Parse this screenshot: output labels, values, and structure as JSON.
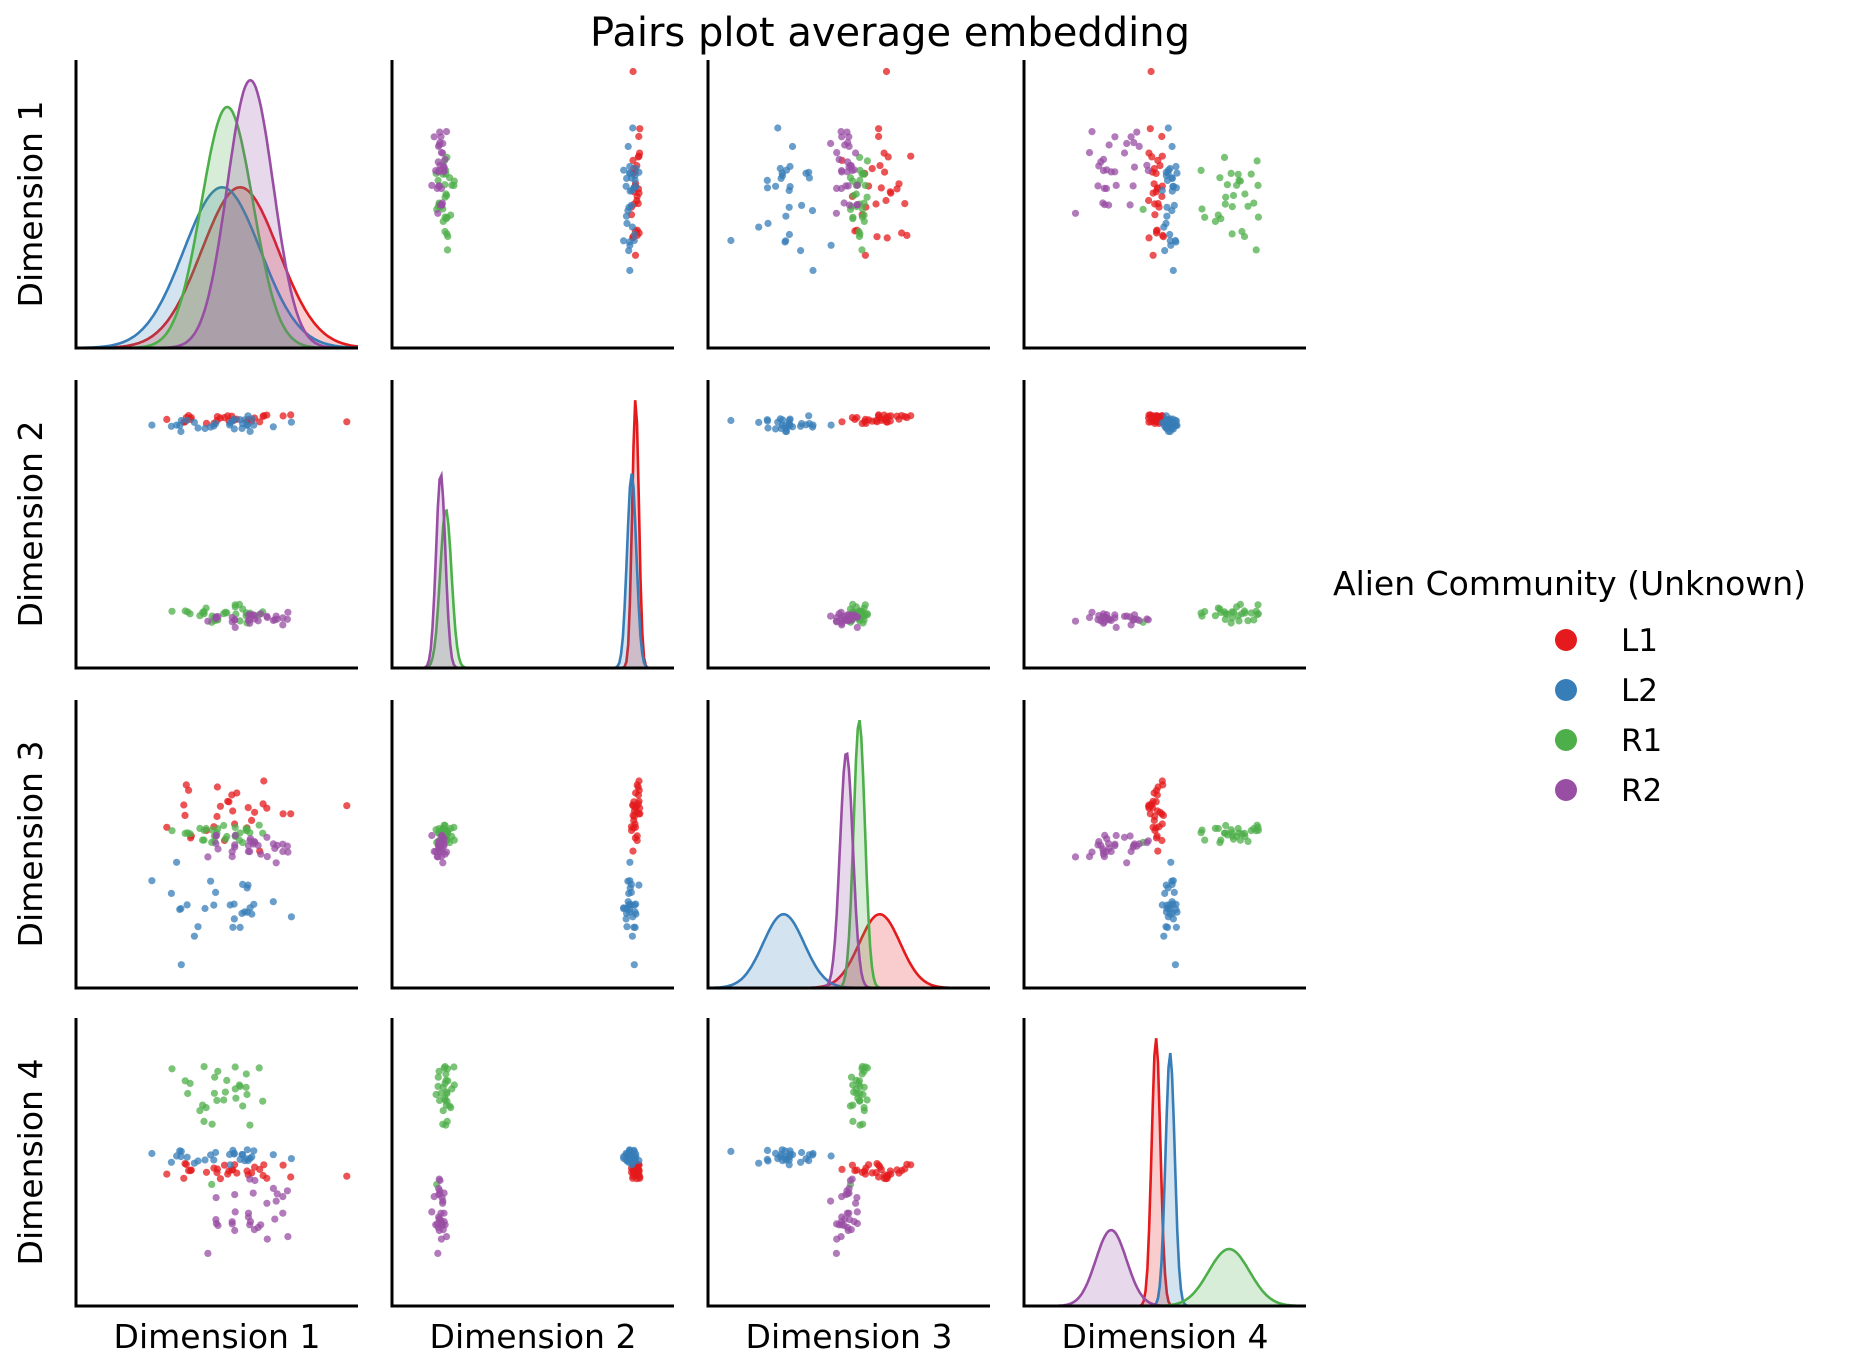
{
  "chart_data": {
    "type": "pairs",
    "title": "Pairs plot average embedding",
    "variables": [
      "Dimension 1",
      "Dimension 2",
      "Dimension 3",
      "Dimension 4"
    ],
    "grid": false,
    "legend": {
      "title": "Alien Community (Unknown)",
      "placement": "right",
      "entries": [
        {
          "label": "L1",
          "color": "#e41a1c"
        },
        {
          "label": "L2",
          "color": "#377eb8"
        },
        {
          "label": "R1",
          "color": "#4daf4a"
        },
        {
          "label": "R2",
          "color": "#984ea3"
        }
      ]
    },
    "ranges": [
      [
        -0.5,
        10.5
      ],
      [
        -0.5,
        10.5
      ],
      [
        -0.5,
        10.5
      ],
      [
        -0.5,
        10.5
      ]
    ],
    "groups": [
      {
        "name": "L1",
        "dim1_mean": 5.9,
        "dim1_sd": 1.5,
        "dim2_mean": 9.0,
        "dim2_sd": 0.13,
        "dim3_mean": 6.2,
        "dim3_sd": 0.8,
        "dim4_mean": 4.65,
        "dim4_sd": 0.17
      },
      {
        "name": "L2",
        "dim1_mean": 5.2,
        "dim1_sd": 1.5,
        "dim2_mean": 8.85,
        "dim2_sd": 0.18,
        "dim3_mean": 2.45,
        "dim3_sd": 0.8,
        "dim4_mean": 5.2,
        "dim4_sd": 0.18
      },
      {
        "name": "R1",
        "dim1_mean": 5.4,
        "dim1_sd": 1.0,
        "dim2_mean": 1.6,
        "dim2_sd": 0.22,
        "dim3_mean": 5.4,
        "dim3_sd": 0.22,
        "dim4_mean": 7.5,
        "dim4_sd": 0.8
      },
      {
        "name": "R2",
        "dim1_mean": 6.3,
        "dim1_sd": 0.9,
        "dim2_mean": 1.4,
        "dim2_sd": 0.18,
        "dim3_mean": 4.9,
        "dim3_sd": 0.25,
        "dim4_mean": 2.9,
        "dim4_sd": 0.6
      }
    ],
    "points_per_group": 30
  }
}
